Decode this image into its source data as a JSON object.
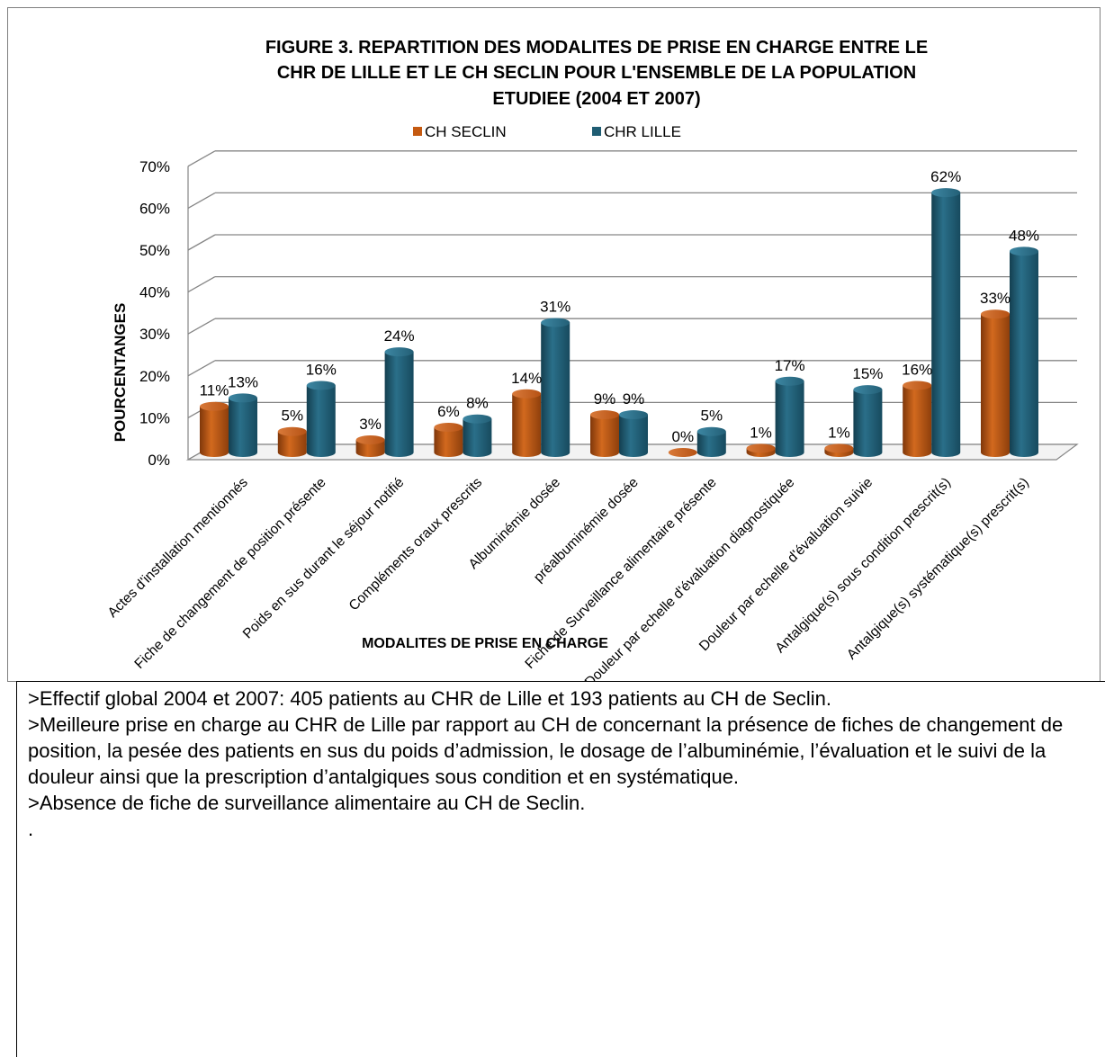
{
  "chart_data": {
    "type": "bar",
    "title_lines": [
      "FIGURE 3. REPARTITION DES MODALITES DE PRISE EN CHARGE ENTRE LE",
      "CHR   DE LILLE ET LE CH SECLIN  POUR L'ENSEMBLE DE LA POPULATION",
      "ETUDIEE (2004 ET 2007)"
    ],
    "xlabel": "MODALITES DE PRISE EN CHARGE",
    "ylabel": "POURCENTANGES",
    "ylim": [
      0,
      0.7
    ],
    "yticks": [
      "0%",
      "10%",
      "20%",
      "30%",
      "40%",
      "50%",
      "60%",
      "70%"
    ],
    "legend_position": "top",
    "three_d": true,
    "categories": [
      "Actes d'installation mentionnés",
      "Fiche de  changement de position présente",
      "Poids en sus durant le séjour notifié",
      "Compléments oraux prescrits",
      "Albuminémie dosée",
      "préalbuminémie dosée",
      "Fiche de Surveillance alimentaire présente",
      "Douleur par echelle d'évaluation diagnostiquée",
      "Douleur par echelle d'évaluation suivie",
      "Antalgique(s) sous condition prescrit(s)",
      "Antalgique(s) systématique(s) prescrit(s)"
    ],
    "series": [
      {
        "name": "CH SECLIN",
        "color": "#c55a11",
        "values": [
          0.11,
          0.05,
          0.03,
          0.06,
          0.14,
          0.09,
          0.0,
          0.01,
          0.01,
          0.16,
          0.33
        ],
        "labels": [
          "11%",
          "5%",
          "3%",
          "6%",
          "14%",
          "9%",
          "0%",
          "1%",
          "1%",
          "16%",
          "33%"
        ]
      },
      {
        "name": "CHR LILLE",
        "color": "#1f5d73",
        "values": [
          0.13,
          0.16,
          0.24,
          0.08,
          0.31,
          0.09,
          0.05,
          0.17,
          0.15,
          0.62,
          0.48
        ],
        "labels": [
          "13%",
          "16%",
          "24%",
          "8%",
          "31%",
          "9%",
          "5%",
          "17%",
          "15%",
          "62%",
          "48%"
        ]
      }
    ]
  },
  "notes": [
    ">Effectif global 2004 et 2007: 405 patients au CHR de Lille et 193 patients au CH de Seclin.",
    ">Meilleure prise en charge au CHR de Lille par rapport au CH de concernant la présence de fiches de changement de position, la pesée des patients en sus du poids d’admission, le dosage de l’albuminémie, l’évaluation et le suivi de la douleur ainsi que la prescription d’antalgiques sous condition et en systématique.",
    ">Absence de fiche de surveillance alimentaire au CH de Seclin.",
    "."
  ]
}
